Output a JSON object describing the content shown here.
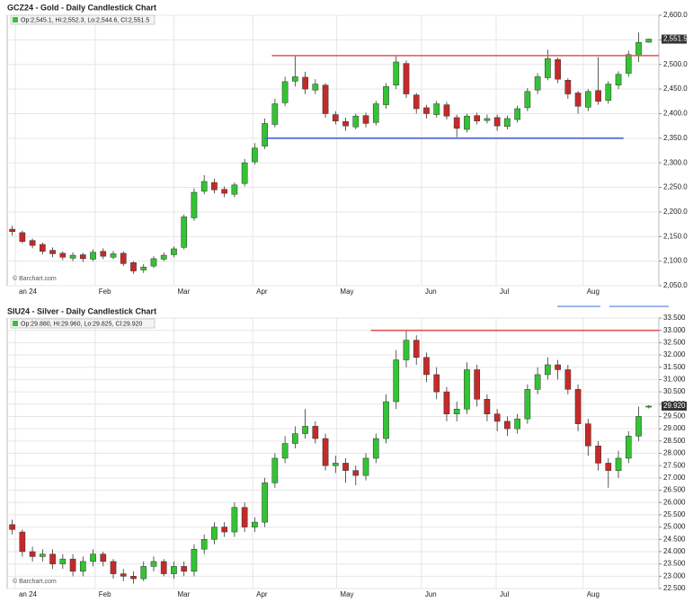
{
  "chart_data": [
    {
      "type": "candlestick",
      "title": "GCZ24 - Gold - Daily Candlestick Chart",
      "info": "Op:2,545.1, Hi:2,552.3, Lo:2,544.6, Cl:2,551.5",
      "source": "© Barchart.com",
      "last_price_label": "2,551.5",
      "up_color": "#33c433",
      "down_color": "#c42a2a",
      "grid": true,
      "xlim": [
        -0.5,
        64
      ],
      "xticks": [
        {
          "value": 0.3,
          "label": "an 24"
        },
        {
          "value": 8.2,
          "label": "Feb"
        },
        {
          "value": 16,
          "label": "Mar"
        },
        {
          "value": 23.8,
          "label": "Apr"
        },
        {
          "value": 32.1,
          "label": "May"
        },
        {
          "value": 40.5,
          "label": "Jun"
        },
        {
          "value": 47.9,
          "label": "Jul"
        },
        {
          "value": 56.5,
          "label": "Aug"
        }
      ],
      "ylim": [
        2050,
        2600
      ],
      "yticks": [
        {
          "value": 2600,
          "label": "2,600.0"
        },
        {
          "value": 2550,
          "label": "2,550.0"
        },
        {
          "value": 2500,
          "label": "2,500.0"
        },
        {
          "value": 2450,
          "label": "2,450.0"
        },
        {
          "value": 2400,
          "label": "2,400.0"
        },
        {
          "value": 2350,
          "label": "2,350.0"
        },
        {
          "value": 2300,
          "label": "2,300.0"
        },
        {
          "value": 2250,
          "label": "2,250.0"
        },
        {
          "value": 2200,
          "label": "2,200.0"
        },
        {
          "value": 2150,
          "label": "2,150.0"
        },
        {
          "value": 2100,
          "label": "2,100.0"
        },
        {
          "value": 2050,
          "label": "2,050.0"
        }
      ],
      "hlines": [
        {
          "y": 2518,
          "x": [
            25.7,
            64
          ],
          "color": "#e05555"
        },
        {
          "y": 2350,
          "x": [
            25,
            60.5
          ],
          "color": "#4a62d8"
        }
      ],
      "open": [
        2165,
        2158,
        2142,
        2134,
        2122,
        2116,
        2106,
        2113,
        2104,
        2120,
        2108,
        2116,
        2097,
        2082,
        2090,
        2104,
        2113,
        2128,
        2188,
        2242,
        2260,
        2246,
        2236,
        2258,
        2302,
        2334,
        2378,
        2422,
        2466,
        2474,
        2448,
        2458,
        2398,
        2384,
        2373,
        2396,
        2382,
        2418,
        2458,
        2502,
        2438,
        2412,
        2398,
        2418,
        2392,
        2368,
        2396,
        2386,
        2392,
        2374,
        2388,
        2412,
        2448,
        2473,
        2510,
        2468,
        2442,
        2413,
        2447,
        2427,
        2458,
        2482,
        2518,
        2545.1
      ],
      "high": [
        2172,
        2162,
        2146,
        2138,
        2128,
        2120,
        2118,
        2117,
        2124,
        2126,
        2121,
        2120,
        2100,
        2094,
        2110,
        2118,
        2130,
        2195,
        2248,
        2275,
        2268,
        2252,
        2260,
        2308,
        2340,
        2390,
        2430,
        2475,
        2518,
        2485,
        2470,
        2462,
        2405,
        2392,
        2400,
        2402,
        2426,
        2462,
        2518,
        2508,
        2442,
        2418,
        2426,
        2424,
        2398,
        2400,
        2402,
        2398,
        2398,
        2396,
        2416,
        2452,
        2482,
        2530,
        2514,
        2472,
        2446,
        2450,
        2515,
        2466,
        2486,
        2528,
        2565,
        2552.3
      ],
      "low": [
        2152,
        2136,
        2126,
        2114,
        2108,
        2102,
        2100,
        2098,
        2100,
        2104,
        2104,
        2090,
        2074,
        2076,
        2086,
        2100,
        2108,
        2124,
        2182,
        2236,
        2238,
        2230,
        2230,
        2252,
        2296,
        2328,
        2372,
        2415,
        2455,
        2440,
        2440,
        2392,
        2378,
        2365,
        2368,
        2372,
        2376,
        2410,
        2450,
        2432,
        2400,
        2390,
        2392,
        2388,
        2352,
        2362,
        2378,
        2380,
        2365,
        2368,
        2382,
        2405,
        2440,
        2468,
        2462,
        2430,
        2400,
        2405,
        2418,
        2420,
        2450,
        2475,
        2505,
        2544.6
      ],
      "close": [
        2160,
        2140,
        2132,
        2120,
        2115,
        2108,
        2112,
        2105,
        2118,
        2110,
        2115,
        2095,
        2080,
        2088,
        2105,
        2112,
        2125,
        2190,
        2240,
        2262,
        2245,
        2238,
        2255,
        2300,
        2330,
        2380,
        2420,
        2465,
        2475,
        2450,
        2460,
        2400,
        2385,
        2375,
        2395,
        2380,
        2420,
        2455,
        2505,
        2440,
        2410,
        2400,
        2420,
        2395,
        2370,
        2395,
        2385,
        2390,
        2375,
        2390,
        2410,
        2445,
        2475,
        2512,
        2470,
        2440,
        2415,
        2445,
        2425,
        2460,
        2480,
        2520,
        2545,
        2551.5
      ]
    },
    {
      "type": "candlestick",
      "title": "SIU24 - Silver - Daily Candlestick Chart",
      "info": "Op:29.880, Hi:29.960, Lo:29.825, Cl:29.920",
      "source": "© Barchart.com",
      "last_price_label": "29.920",
      "up_color": "#33c433",
      "down_color": "#c42a2a",
      "grid": true,
      "xlim": [
        -0.5,
        64
      ],
      "xticks": [
        {
          "value": 0.3,
          "label": "an 24"
        },
        {
          "value": 8.2,
          "label": "Feb"
        },
        {
          "value": 16,
          "label": "Mar"
        },
        {
          "value": 23.8,
          "label": "Apr"
        },
        {
          "value": 32.1,
          "label": "May"
        },
        {
          "value": 40.5,
          "label": "Jun"
        },
        {
          "value": 47.9,
          "label": "Jul"
        },
        {
          "value": 56.5,
          "label": "Aug"
        }
      ],
      "ylim": [
        22.5,
        33.5
      ],
      "yticks": [
        {
          "value": 33.5,
          "label": "33.500"
        },
        {
          "value": 33,
          "label": "33.000"
        },
        {
          "value": 32.5,
          "label": "32.500"
        },
        {
          "value": 32,
          "label": "32.000"
        },
        {
          "value": 31.5,
          "label": "31.500"
        },
        {
          "value": 31,
          "label": "31.000"
        },
        {
          "value": 30.5,
          "label": "30.500"
        },
        {
          "value": 30,
          "label": "30.000"
        },
        {
          "value": 29.5,
          "label": "29.500"
        },
        {
          "value": 29,
          "label": "29.000"
        },
        {
          "value": 28.5,
          "label": "28.500"
        },
        {
          "value": 28,
          "label": "28.000"
        },
        {
          "value": 27.5,
          "label": "27.500"
        },
        {
          "value": 27,
          "label": "27.000"
        },
        {
          "value": 26.5,
          "label": "26.500"
        },
        {
          "value": 26,
          "label": "26.000"
        },
        {
          "value": 25.5,
          "label": "25.500"
        },
        {
          "value": 25,
          "label": "25.000"
        },
        {
          "value": 24.5,
          "label": "24.500"
        },
        {
          "value": 24,
          "label": "24.000"
        },
        {
          "value": 23.5,
          "label": "23.500"
        },
        {
          "value": 23,
          "label": "23.000"
        },
        {
          "value": 22.5,
          "label": "22.500"
        }
      ],
      "hlines": [
        {
          "y": 33,
          "x": [
            35.5,
            64
          ],
          "color": "#e05555"
        }
      ],
      "open": [
        25.1,
        24.8,
        24.0,
        23.8,
        23.9,
        23.5,
        23.7,
        23.2,
        23.6,
        23.9,
        23.6,
        23.1,
        23.0,
        22.9,
        23.4,
        23.6,
        23.1,
        23.4,
        23.2,
        24.1,
        24.5,
        25.0,
        24.8,
        25.8,
        25.0,
        25.2,
        26.8,
        27.8,
        28.4,
        28.8,
        29.1,
        28.6,
        27.5,
        27.6,
        27.3,
        27.1,
        27.8,
        28.6,
        30.1,
        31.8,
        32.6,
        31.9,
        31.2,
        30.5,
        29.6,
        29.8,
        31.4,
        30.2,
        29.6,
        29.3,
        29.0,
        29.4,
        30.6,
        31.2,
        31.6,
        31.4,
        30.6,
        29.2,
        28.3,
        27.6,
        27.3,
        27.8,
        28.7,
        29.88
      ],
      "high": [
        25.3,
        24.9,
        24.2,
        24.1,
        24.1,
        23.9,
        23.9,
        23.8,
        24.1,
        24.0,
        23.7,
        23.3,
        23.2,
        23.6,
        23.8,
        23.7,
        23.6,
        23.6,
        24.3,
        24.7,
        25.2,
        25.2,
        26.0,
        26.0,
        25.4,
        27.0,
        28.0,
        28.7,
        29.1,
        29.8,
        29.3,
        28.8,
        27.9,
        27.8,
        27.5,
        28.0,
        28.8,
        30.4,
        32.2,
        33.0,
        32.8,
        32.1,
        31.5,
        30.7,
        30.1,
        31.7,
        31.6,
        30.4,
        29.8,
        29.5,
        29.6,
        30.8,
        31.5,
        31.9,
        31.8,
        31.6,
        30.8,
        29.4,
        28.5,
        27.8,
        28.1,
        28.9,
        29.9,
        29.96
      ],
      "low": [
        24.7,
        23.8,
        23.6,
        23.6,
        23.3,
        23.3,
        23.0,
        23.0,
        23.4,
        23.4,
        22.9,
        22.8,
        22.7,
        22.8,
        23.2,
        23.0,
        22.9,
        23.0,
        23.0,
        23.9,
        24.3,
        24.6,
        24.6,
        24.8,
        24.8,
        25.0,
        26.6,
        27.6,
        28.2,
        28.6,
        28.4,
        27.3,
        27.2,
        26.8,
        26.7,
        26.9,
        27.6,
        28.4,
        29.8,
        31.5,
        31.6,
        30.9,
        30.2,
        29.3,
        29.3,
        29.6,
        29.9,
        29.3,
        28.9,
        28.7,
        28.8,
        29.2,
        30.4,
        31.0,
        31.0,
        30.4,
        28.9,
        27.9,
        27.3,
        26.6,
        27.0,
        27.6,
        28.5,
        29.825
      ],
      "close": [
        24.9,
        24.0,
        23.8,
        23.9,
        23.5,
        23.7,
        23.2,
        23.6,
        23.9,
        23.6,
        23.1,
        23.0,
        22.9,
        23.4,
        23.6,
        23.1,
        23.4,
        23.2,
        24.1,
        24.5,
        25.0,
        24.8,
        25.8,
        25.0,
        25.2,
        26.8,
        27.8,
        28.4,
        28.8,
        29.1,
        28.6,
        27.5,
        27.6,
        27.3,
        27.1,
        27.8,
        28.6,
        30.1,
        31.8,
        32.6,
        31.9,
        31.2,
        30.5,
        29.6,
        29.8,
        31.4,
        30.2,
        29.6,
        29.3,
        29.0,
        29.4,
        30.6,
        31.2,
        31.6,
        31.4,
        30.6,
        29.2,
        28.3,
        27.6,
        27.3,
        27.8,
        28.7,
        29.5,
        29.92
      ]
    }
  ]
}
